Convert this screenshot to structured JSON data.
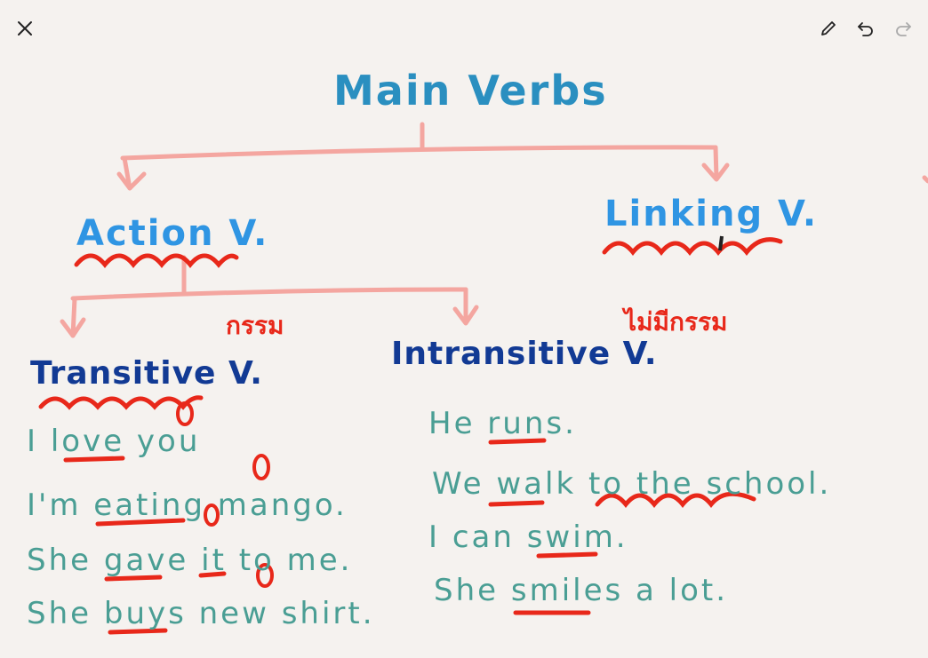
{
  "toolbar": {
    "close_icon": "close-icon",
    "pen_icon": "pencil-icon",
    "undo_icon": "undo-icon",
    "redo_icon": "redo-icon"
  },
  "diagram": {
    "title": "Main Verbs",
    "action": "Action V.",
    "linking": "Linking V.",
    "transitive": "Transitive V.",
    "intransitive": "Intransitive V.",
    "thai_transitive": "กรรม",
    "thai_intransitive": "ไม่มีกรรม",
    "transitive_examples": [
      "I love you",
      "I'm eating mango.",
      "She gave it to me.",
      "She buys new shirt."
    ],
    "intransitive_examples": [
      "He runs.",
      "We walk to the school.",
      "I can swim.",
      "She smiles a lot."
    ]
  },
  "colors": {
    "background": "#f5f2ef",
    "connector": "#f4a6a0",
    "underline": "#e8281a",
    "title": "#2a8fc0",
    "category": "#2f95e3",
    "subcategory": "#123a94",
    "example": "#4a9e94"
  }
}
